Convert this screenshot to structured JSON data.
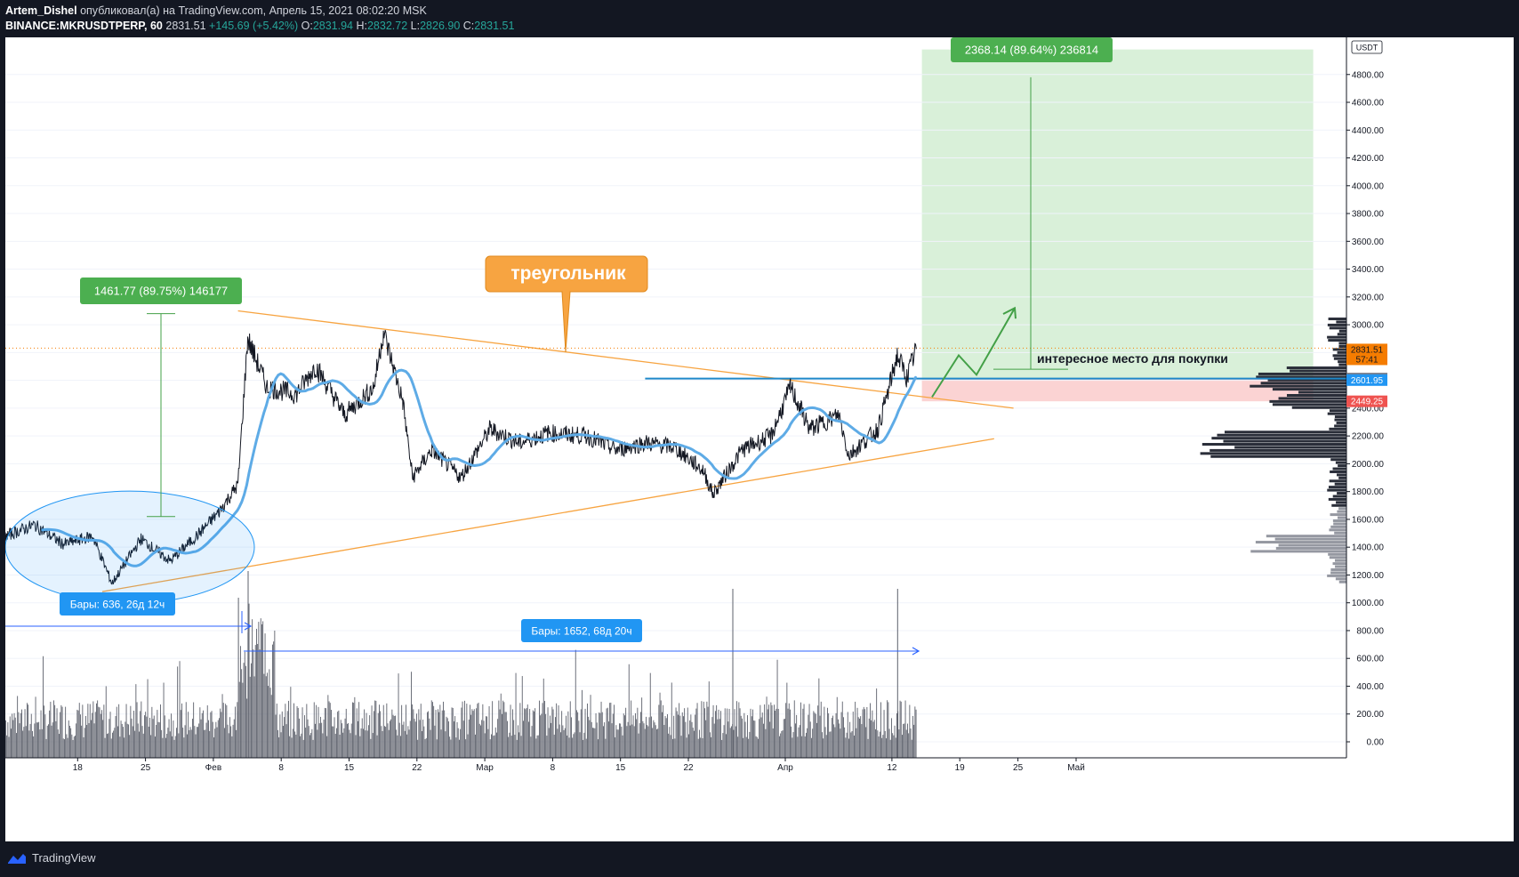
{
  "header": {
    "author": "Artem_Dishel",
    "published": "опубликовал(а) на TradingView.com, Апрель 15, 2021 08:02:20 MSK",
    "symbol": "BINANCE:MKRUSDTPERP, 60",
    "last": "2831.51",
    "change": "+145.69 (+5.42%)",
    "o_label": "O:",
    "o": "2831.94",
    "h_label": "H:",
    "h": "2832.72",
    "l_label": "L:",
    "l": "2826.90",
    "c_label": "C:",
    "c": "2831.51"
  },
  "footer": {
    "brand": "TradingView"
  },
  "colors": {
    "background": "#131722",
    "chart_bg": "#ffffff",
    "price": "#131722",
    "ma": "#5eabe6",
    "triangle": "#f7a441",
    "measure_green": "#4caf50",
    "measure_blue": "#2962ff",
    "level": "#1e88c9",
    "target_fill": "#d9f0d9",
    "stop_fill": "#fbd3d3"
  },
  "chart_data": {
    "type": "candlestick",
    "symbol": "BINANCE:MKRUSDTPERP",
    "timeframe": "60",
    "x_ticks": [
      "18",
      "25",
      "Фев",
      "8",
      "15",
      "22",
      "Мар",
      "8",
      "15",
      "22",
      "Апр",
      "12",
      "19",
      "25",
      "Май"
    ],
    "y_ticks": [
      "0.00",
      "200.00",
      "400.00",
      "600.00",
      "800.00",
      "1000.00",
      "1200.00",
      "1400.00",
      "1600.00",
      "1800.00",
      "2000.00",
      "2200.00",
      "2400.00",
      "2600.00",
      "2800.00",
      "3000.00",
      "3200.00",
      "3400.00",
      "3600.00",
      "3800.00",
      "4000.00",
      "4200.00",
      "4400.00",
      "4600.00",
      "4800.00"
    ],
    "ylim": [
      -100,
      5000
    ],
    "currency_label": "USDT",
    "price_path": [
      [
        "2021-01-11",
        1480
      ],
      [
        "2021-01-14",
        1560
      ],
      [
        "2021-01-17",
        1420
      ],
      [
        "2021-01-20",
        1480
      ],
      [
        "2021-01-22",
        1140
      ],
      [
        "2021-01-25",
        1460
      ],
      [
        "2021-01-28",
        1300
      ],
      [
        "2021-01-31",
        1500
      ],
      [
        "2021-02-02",
        1650
      ],
      [
        "2021-02-04",
        1850
      ],
      [
        "2021-02-05",
        2900
      ],
      [
        "2021-02-07",
        2550
      ],
      [
        "2021-02-10",
        2500
      ],
      [
        "2021-02-12",
        2700
      ],
      [
        "2021-02-15",
        2350
      ],
      [
        "2021-02-18",
        2550
      ],
      [
        "2021-02-19",
        2950
      ],
      [
        "2021-02-21",
        2450
      ],
      [
        "2021-02-22",
        1900
      ],
      [
        "2021-02-24",
        2100
      ],
      [
        "2021-02-27",
        1900
      ],
      [
        "2021-03-02",
        2250
      ],
      [
        "2021-03-05",
        2150
      ],
      [
        "2021-03-08",
        2220
      ],
      [
        "2021-03-12",
        2200
      ],
      [
        "2021-03-15",
        2100
      ],
      [
        "2021-03-18",
        2150
      ],
      [
        "2021-03-21",
        2120
      ],
      [
        "2021-03-24",
        1950
      ],
      [
        "2021-03-25",
        1780
      ],
      [
        "2021-03-28",
        2100
      ],
      [
        "2021-03-31",
        2200
      ],
      [
        "2021-04-02",
        2550
      ],
      [
        "2021-04-04",
        2250
      ],
      [
        "2021-04-07",
        2350
      ],
      [
        "2021-04-08",
        2060
      ],
      [
        "2021-04-11",
        2250
      ],
      [
        "2021-04-12",
        2500
      ],
      [
        "2021-04-13",
        2780
      ],
      [
        "2021-04-14",
        2620
      ],
      [
        "2021-04-15",
        2831.51
      ]
    ],
    "lines": [
      {
        "name": "upper trendline",
        "from": [
          "2021-02-04",
          3100
        ],
        "to": [
          "2021-04-25",
          2400
        ]
      },
      {
        "name": "lower trendline",
        "from": [
          "2021-01-21",
          1080
        ],
        "to": [
          "2021-04-23",
          2180
        ]
      },
      {
        "name": "level",
        "price": 2612.72,
        "from": "2021-03-18"
      }
    ],
    "price_labels": [
      {
        "value": "2831.51",
        "sub": "57:41",
        "color": "#f57c00"
      },
      {
        "value": "2612.72",
        "color": "#787b86"
      },
      {
        "value": "2601.95",
        "color": "#2196f3"
      },
      {
        "value": "2449.25",
        "color": "#ef5350"
      }
    ],
    "annotations": {
      "measure_left": "1461.77 (89.75%) 146177",
      "measure_right": "2368.14 (89.64%) 236814",
      "triangle_label": "треугольник",
      "buy_note": "интересное место для покупки",
      "bars_left": "Бары: 636, 26д 12ч",
      "bars_right": "Бары: 1652, 68д 20ч"
    },
    "position": {
      "entry": 2612.72,
      "target": 4980,
      "stop": 2449.25
    }
  }
}
